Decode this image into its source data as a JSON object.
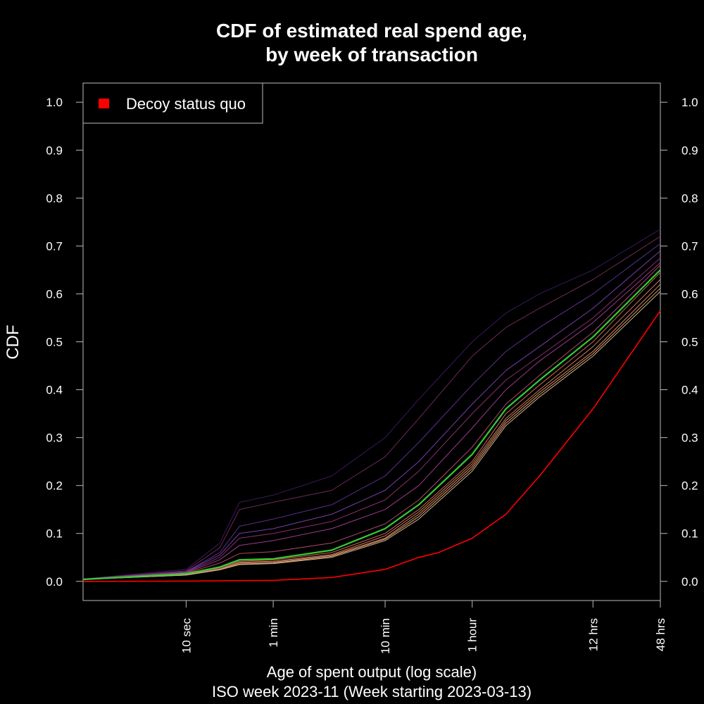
{
  "chart_data": {
    "type": "line",
    "title_line1": "CDF of estimated real spend age,",
    "title_line2": "by week of transaction",
    "xlabel": "Age of spent output (log scale)",
    "xlabel2": "ISO week 2023-11 (Week starting 2023-03-13)",
    "ylabel": "CDF",
    "x_scale": "log",
    "x_unit": "seconds",
    "xlim": [
      1.2,
      172800
    ],
    "ylim": [
      -0.04,
      1.04
    ],
    "x_ticks": [
      {
        "value": 10,
        "label": "10 sec"
      },
      {
        "value": 60,
        "label": "1 min"
      },
      {
        "value": 600,
        "label": "10 min"
      },
      {
        "value": 3600,
        "label": "1 hour"
      },
      {
        "value": 43200,
        "label": "12 hrs"
      },
      {
        "value": 172800,
        "label": "48 hrs"
      }
    ],
    "y_ticks": [
      "0.0",
      "0.1",
      "0.2",
      "0.3",
      "0.4",
      "0.5",
      "0.6",
      "0.7",
      "0.8",
      "0.9",
      "1.0"
    ],
    "legend": {
      "position": "top-left",
      "entries": [
        {
          "name": "Decoy status quo",
          "color": "#ff0000"
        }
      ]
    },
    "highlight_color": "#33cc33",
    "decoy_series": {
      "name": "Decoy status quo",
      "color": "#ff0000",
      "x": [
        1.2,
        10,
        60,
        200,
        600,
        1200,
        1800,
        3600,
        7200,
        14400,
        43200,
        172800
      ],
      "y": [
        0.0,
        0.0005,
        0.002,
        0.008,
        0.025,
        0.05,
        0.06,
        0.09,
        0.14,
        0.22,
        0.36,
        0.565
      ]
    },
    "highlight_series": {
      "color": "#33cc33",
      "x": [
        1.2,
        10,
        20,
        30,
        60,
        200,
        600,
        1200,
        3600,
        7200,
        14400,
        43200,
        172800
      ],
      "y": [
        0.004,
        0.016,
        0.03,
        0.045,
        0.047,
        0.065,
        0.11,
        0.16,
        0.265,
        0.36,
        0.42,
        0.51,
        0.65
      ]
    },
    "background_series": [
      {
        "color": "#3a1a5e",
        "x": [
          1.2,
          10,
          20,
          30,
          60,
          200,
          600,
          1200,
          3600,
          7200,
          14400,
          43200,
          172800
        ],
        "y": [
          0.005,
          0.025,
          0.08,
          0.165,
          0.18,
          0.22,
          0.3,
          0.38,
          0.5,
          0.56,
          0.6,
          0.65,
          0.735
        ]
      },
      {
        "color": "#6e2a55",
        "x": [
          1.2,
          10,
          20,
          30,
          60,
          200,
          600,
          1200,
          3600,
          7200,
          14400,
          43200,
          172800
        ],
        "y": [
          0.005,
          0.022,
          0.07,
          0.15,
          0.165,
          0.19,
          0.26,
          0.34,
          0.47,
          0.53,
          0.57,
          0.63,
          0.72
        ]
      },
      {
        "color": "#5a2f8f",
        "x": [
          1.2,
          10,
          20,
          30,
          60,
          200,
          600,
          1200,
          3600,
          7200,
          14400,
          43200,
          172800
        ],
        "y": [
          0.005,
          0.02,
          0.06,
          0.115,
          0.13,
          0.16,
          0.22,
          0.29,
          0.41,
          0.48,
          0.53,
          0.6,
          0.705
        ]
      },
      {
        "color": "#7a3da8",
        "x": [
          1.2,
          10,
          20,
          30,
          60,
          200,
          600,
          1200,
          3600,
          7200,
          14400,
          43200,
          172800
        ],
        "y": [
          0.005,
          0.02,
          0.055,
          0.1,
          0.11,
          0.14,
          0.19,
          0.25,
          0.37,
          0.44,
          0.49,
          0.57,
          0.69
        ]
      },
      {
        "color": "#8a2d6f",
        "x": [
          1.2,
          10,
          20,
          30,
          60,
          200,
          600,
          1200,
          3600,
          7200,
          14400,
          43200,
          172800
        ],
        "y": [
          0.005,
          0.019,
          0.05,
          0.09,
          0.1,
          0.125,
          0.17,
          0.23,
          0.35,
          0.42,
          0.47,
          0.55,
          0.675
        ]
      },
      {
        "color": "#9b3b8a",
        "x": [
          1.2,
          10,
          20,
          30,
          60,
          200,
          600,
          1200,
          3600,
          7200,
          14400,
          43200,
          172800
        ],
        "y": [
          0.005,
          0.018,
          0.045,
          0.075,
          0.085,
          0.11,
          0.15,
          0.2,
          0.32,
          0.4,
          0.46,
          0.54,
          0.665
        ]
      },
      {
        "color": "#b04a6a",
        "x": [
          1.2,
          10,
          20,
          30,
          60,
          200,
          600,
          1200,
          3600,
          7200,
          14400,
          43200,
          172800
        ],
        "y": [
          0.005,
          0.017,
          0.038,
          0.058,
          0.062,
          0.08,
          0.12,
          0.17,
          0.28,
          0.37,
          0.43,
          0.52,
          0.66
        ]
      },
      {
        "color": "#c26a55",
        "x": [
          1.2,
          10,
          20,
          30,
          60,
          200,
          600,
          1200,
          3600,
          7200,
          14400,
          43200,
          172800
        ],
        "y": [
          0.004,
          0.015,
          0.028,
          0.042,
          0.045,
          0.06,
          0.1,
          0.15,
          0.25,
          0.35,
          0.41,
          0.5,
          0.645
        ]
      },
      {
        "color": "#d07a5a",
        "x": [
          1.2,
          10,
          20,
          30,
          60,
          200,
          600,
          1200,
          3600,
          7200,
          14400,
          43200,
          172800
        ],
        "y": [
          0.004,
          0.014,
          0.026,
          0.04,
          0.042,
          0.056,
          0.095,
          0.145,
          0.245,
          0.34,
          0.4,
          0.49,
          0.63
        ]
      },
      {
        "color": "#d98c6a",
        "x": [
          1.2,
          10,
          20,
          30,
          60,
          200,
          600,
          1200,
          3600,
          7200,
          14400,
          43200,
          172800
        ],
        "y": [
          0.004,
          0.014,
          0.025,
          0.038,
          0.04,
          0.054,
          0.09,
          0.14,
          0.24,
          0.335,
          0.395,
          0.48,
          0.62
        ]
      },
      {
        "color": "#e0a070",
        "x": [
          1.2,
          10,
          20,
          30,
          60,
          200,
          600,
          1200,
          3600,
          7200,
          14400,
          43200,
          172800
        ],
        "y": [
          0.004,
          0.013,
          0.024,
          0.036,
          0.038,
          0.052,
          0.088,
          0.135,
          0.235,
          0.33,
          0.39,
          0.475,
          0.612
        ]
      },
      {
        "color": "#c9b28a",
        "x": [
          1.2,
          10,
          20,
          30,
          60,
          200,
          600,
          1200,
          3600,
          7200,
          14400,
          43200,
          172800
        ],
        "y": [
          0.004,
          0.013,
          0.024,
          0.035,
          0.037,
          0.05,
          0.085,
          0.13,
          0.23,
          0.325,
          0.385,
          0.47,
          0.605
        ]
      }
    ]
  }
}
